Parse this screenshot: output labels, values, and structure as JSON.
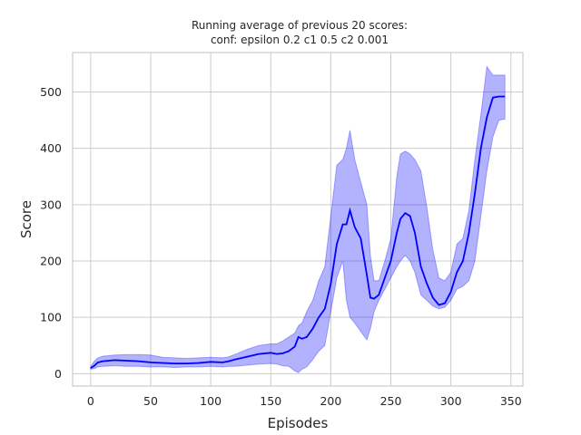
{
  "chart_data": {
    "type": "line",
    "title_line1": "Running average of previous 20 scores:",
    "title_line2": "conf: epsilon 0.2 c1 0.5 c2 0.001",
    "xlabel": "Episodes",
    "ylabel": "Score",
    "xlim": [
      -15,
      360
    ],
    "ylim": [
      -22,
      570
    ],
    "xticks": [
      0,
      50,
      100,
      150,
      200,
      250,
      300,
      350
    ],
    "yticks": [
      0,
      100,
      200,
      300,
      400,
      500
    ],
    "grid": true,
    "colors": {
      "line": "#0000ff",
      "band": "#0000ff"
    },
    "series": [
      {
        "x": [
          0,
          3,
          6,
          10,
          20,
          30,
          40,
          50,
          60,
          70,
          80,
          90,
          100,
          110,
          115,
          120,
          130,
          140,
          150,
          155,
          160,
          165,
          170,
          173,
          176,
          180,
          185,
          190,
          195,
          200,
          205,
          210,
          213,
          216,
          220,
          225,
          230,
          233,
          236,
          240,
          245,
          250,
          255,
          258,
          262,
          266,
          270,
          275,
          280,
          285,
          290,
          295,
          300,
          305,
          310,
          315,
          320,
          325,
          330,
          335,
          340,
          345
        ],
        "mean": [
          10,
          14,
          20,
          22,
          24,
          23,
          22,
          20,
          19,
          18,
          18,
          19,
          21,
          20,
          22,
          25,
          30,
          35,
          37,
          35,
          36,
          40,
          48,
          65,
          62,
          65,
          80,
          100,
          115,
          160,
          230,
          265,
          265,
          290,
          260,
          240,
          175,
          135,
          133,
          140,
          170,
          200,
          250,
          275,
          285,
          280,
          250,
          190,
          160,
          135,
          122,
          125,
          145,
          180,
          200,
          250,
          320,
          400,
          455,
          490,
          492,
          492
        ],
        "lower": [
          8,
          9,
          12,
          13,
          14,
          13,
          13,
          12,
          12,
          11,
          12,
          12,
          13,
          12,
          13,
          13,
          15,
          17,
          18,
          17,
          14,
          13,
          5,
          2,
          8,
          12,
          25,
          40,
          50,
          110,
          170,
          200,
          130,
          100,
          90,
          75,
          60,
          80,
          110,
          130,
          150,
          170,
          190,
          200,
          210,
          200,
          180,
          140,
          130,
          120,
          115,
          118,
          130,
          150,
          155,
          165,
          200,
          280,
          360,
          420,
          450,
          452
        ],
        "upper": [
          12,
          22,
          28,
          31,
          33,
          34,
          34,
          33,
          29,
          28,
          27,
          28,
          29,
          28,
          30,
          34,
          43,
          50,
          53,
          53,
          58,
          65,
          72,
          85,
          90,
          110,
          130,
          165,
          190,
          280,
          370,
          380,
          400,
          432,
          380,
          340,
          300,
          210,
          165,
          165,
          200,
          240,
          350,
          390,
          395,
          390,
          380,
          360,
          295,
          220,
          170,
          165,
          180,
          230,
          240,
          290,
          380,
          460,
          545,
          530,
          530,
          530
        ]
      }
    ]
  }
}
